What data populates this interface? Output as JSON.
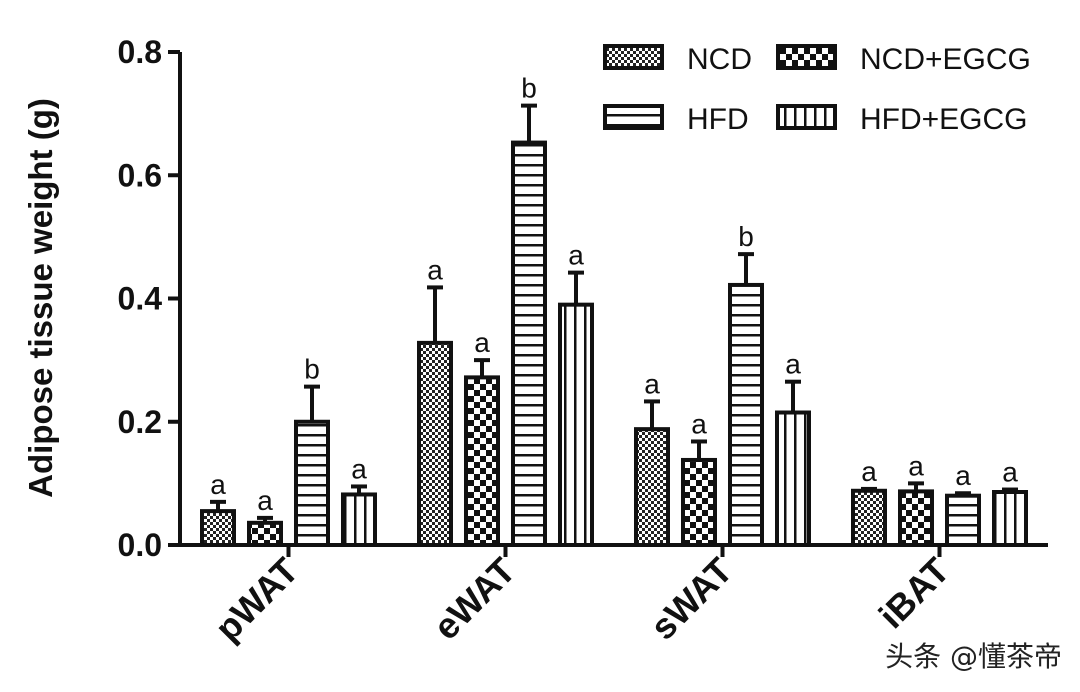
{
  "watermark": "头条 @懂茶帝",
  "chart_data": {
    "type": "bar",
    "title": "",
    "xlabel": "",
    "ylabel": "Adipose tissue weight (g)",
    "ylim": [
      0,
      0.8
    ],
    "yticks": [
      0.0,
      0.2,
      0.4,
      0.6,
      0.8
    ],
    "ytick_labels": [
      "0.0",
      "0.2",
      "0.4",
      "0.6",
      "0.8"
    ],
    "categories": [
      "pWAT",
      "eWAT",
      "sWAT",
      "iBAT"
    ],
    "legend_position": "top-right",
    "grid": false,
    "series": [
      {
        "name": "NCD",
        "pattern": "checker-fine",
        "values": [
          0.055,
          0.328,
          0.188,
          0.088
        ],
        "errors": [
          0.015,
          0.09,
          0.045,
          0.003
        ],
        "labels": [
          "a",
          "a",
          "a",
          "a"
        ]
      },
      {
        "name": "NCD+EGCG",
        "pattern": "checker-coarse",
        "values": [
          0.036,
          0.272,
          0.138,
          0.087
        ],
        "errors": [
          0.008,
          0.028,
          0.03,
          0.013
        ],
        "labels": [
          "a",
          "a",
          "a",
          "a"
        ]
      },
      {
        "name": "HFD",
        "pattern": "horizontal-stripes",
        "values": [
          0.2,
          0.653,
          0.422,
          0.08
        ],
        "errors": [
          0.057,
          0.06,
          0.05,
          0.004
        ],
        "labels": [
          "b",
          "b",
          "b",
          "a"
        ]
      },
      {
        "name": "HFD+EGCG",
        "pattern": "vertical-stripes",
        "values": [
          0.082,
          0.39,
          0.215,
          0.086
        ],
        "errors": [
          0.013,
          0.052,
          0.05,
          0.004
        ],
        "labels": [
          "a",
          "a",
          "a",
          "a"
        ]
      }
    ]
  }
}
